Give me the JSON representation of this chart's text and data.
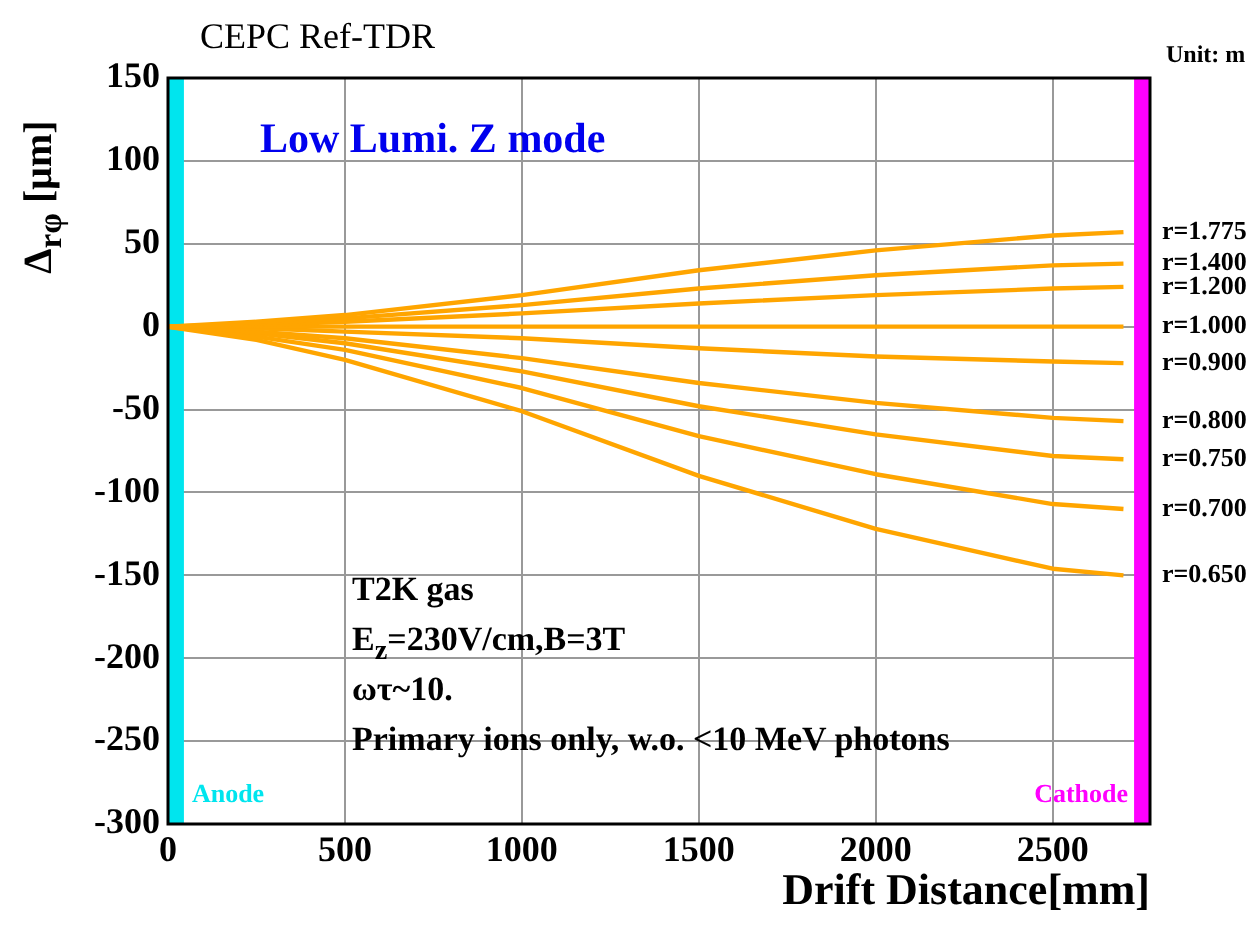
{
  "chart_data": {
    "type": "line",
    "title": "CEPC  Ref-TDR",
    "xlabel": "Drift Distance[mm]",
    "ylabel": "Δ$_{rφ}$  [μm]",
    "annotations": [
      "Unit: m",
      "Low Lumi. Z mode",
      "T2K gas",
      "E$_{z}$=230V/cm,B=3T",
      "ωτ~10.",
      "Primary ions only, w.o. <10 MeV photons"
    ],
    "x": [
      0,
      250,
      500,
      1000,
      1500,
      2000,
      2500,
      2700
    ],
    "series": [
      {
        "name": "r=1.775",
        "color": "#ffa500",
        "values": [
          0,
          3,
          7,
          19,
          34,
          46,
          55,
          57
        ]
      },
      {
        "name": "r=1.400",
        "color": "#ffa500",
        "values": [
          0,
          2,
          5,
          13,
          23,
          31,
          37,
          38
        ]
      },
      {
        "name": "r=1.200",
        "color": "#ffa500",
        "values": [
          0,
          1,
          3,
          8,
          14,
          19,
          23,
          24
        ]
      },
      {
        "name": "r=1.000",
        "color": "#ffa500",
        "values": [
          0,
          0,
          0,
          0,
          0,
          0,
          0,
          0
        ]
      },
      {
        "name": "r=0.900",
        "color": "#ffa500",
        "values": [
          0,
          -1,
          -3,
          -7,
          -13,
          -18,
          -21,
          -22
        ]
      },
      {
        "name": "r=0.800",
        "color": "#ffa500",
        "values": [
          0,
          -3,
          -7,
          -19,
          -34,
          -46,
          -55,
          -57
        ]
      },
      {
        "name": "r=0.750",
        "color": "#ffa500",
        "values": [
          0,
          -4,
          -10,
          -27,
          -48,
          -65,
          -78,
          -80
        ]
      },
      {
        "name": "r=0.700",
        "color": "#ffa500",
        "values": [
          0,
          -6,
          -14,
          -37,
          -66,
          -89,
          -107,
          -110
        ]
      },
      {
        "name": "r=0.650",
        "color": "#ffa500",
        "values": [
          0,
          -8,
          -20,
          -51,
          -90,
          -122,
          -146,
          -150
        ]
      }
    ],
    "bands": [
      {
        "axis": "x",
        "from": 0,
        "to": 45,
        "label": "Anode",
        "color": "#00e5ee"
      },
      {
        "axis": "x",
        "from": 2730,
        "to": 2775,
        "label": "Cathode",
        "color": "#ff00ff"
      }
    ],
    "xlim": [
      0,
      2775
    ],
    "xticks": [
      0,
      500,
      1000,
      1500,
      2000,
      2500
    ],
    "ylim": [
      -300,
      150
    ],
    "yticks": [
      -300,
      -250,
      -200,
      -150,
      -100,
      -50,
      0,
      50,
      100,
      150
    ],
    "grid": true,
    "legend": false,
    "marker": "none",
    "line_style": "solid"
  }
}
